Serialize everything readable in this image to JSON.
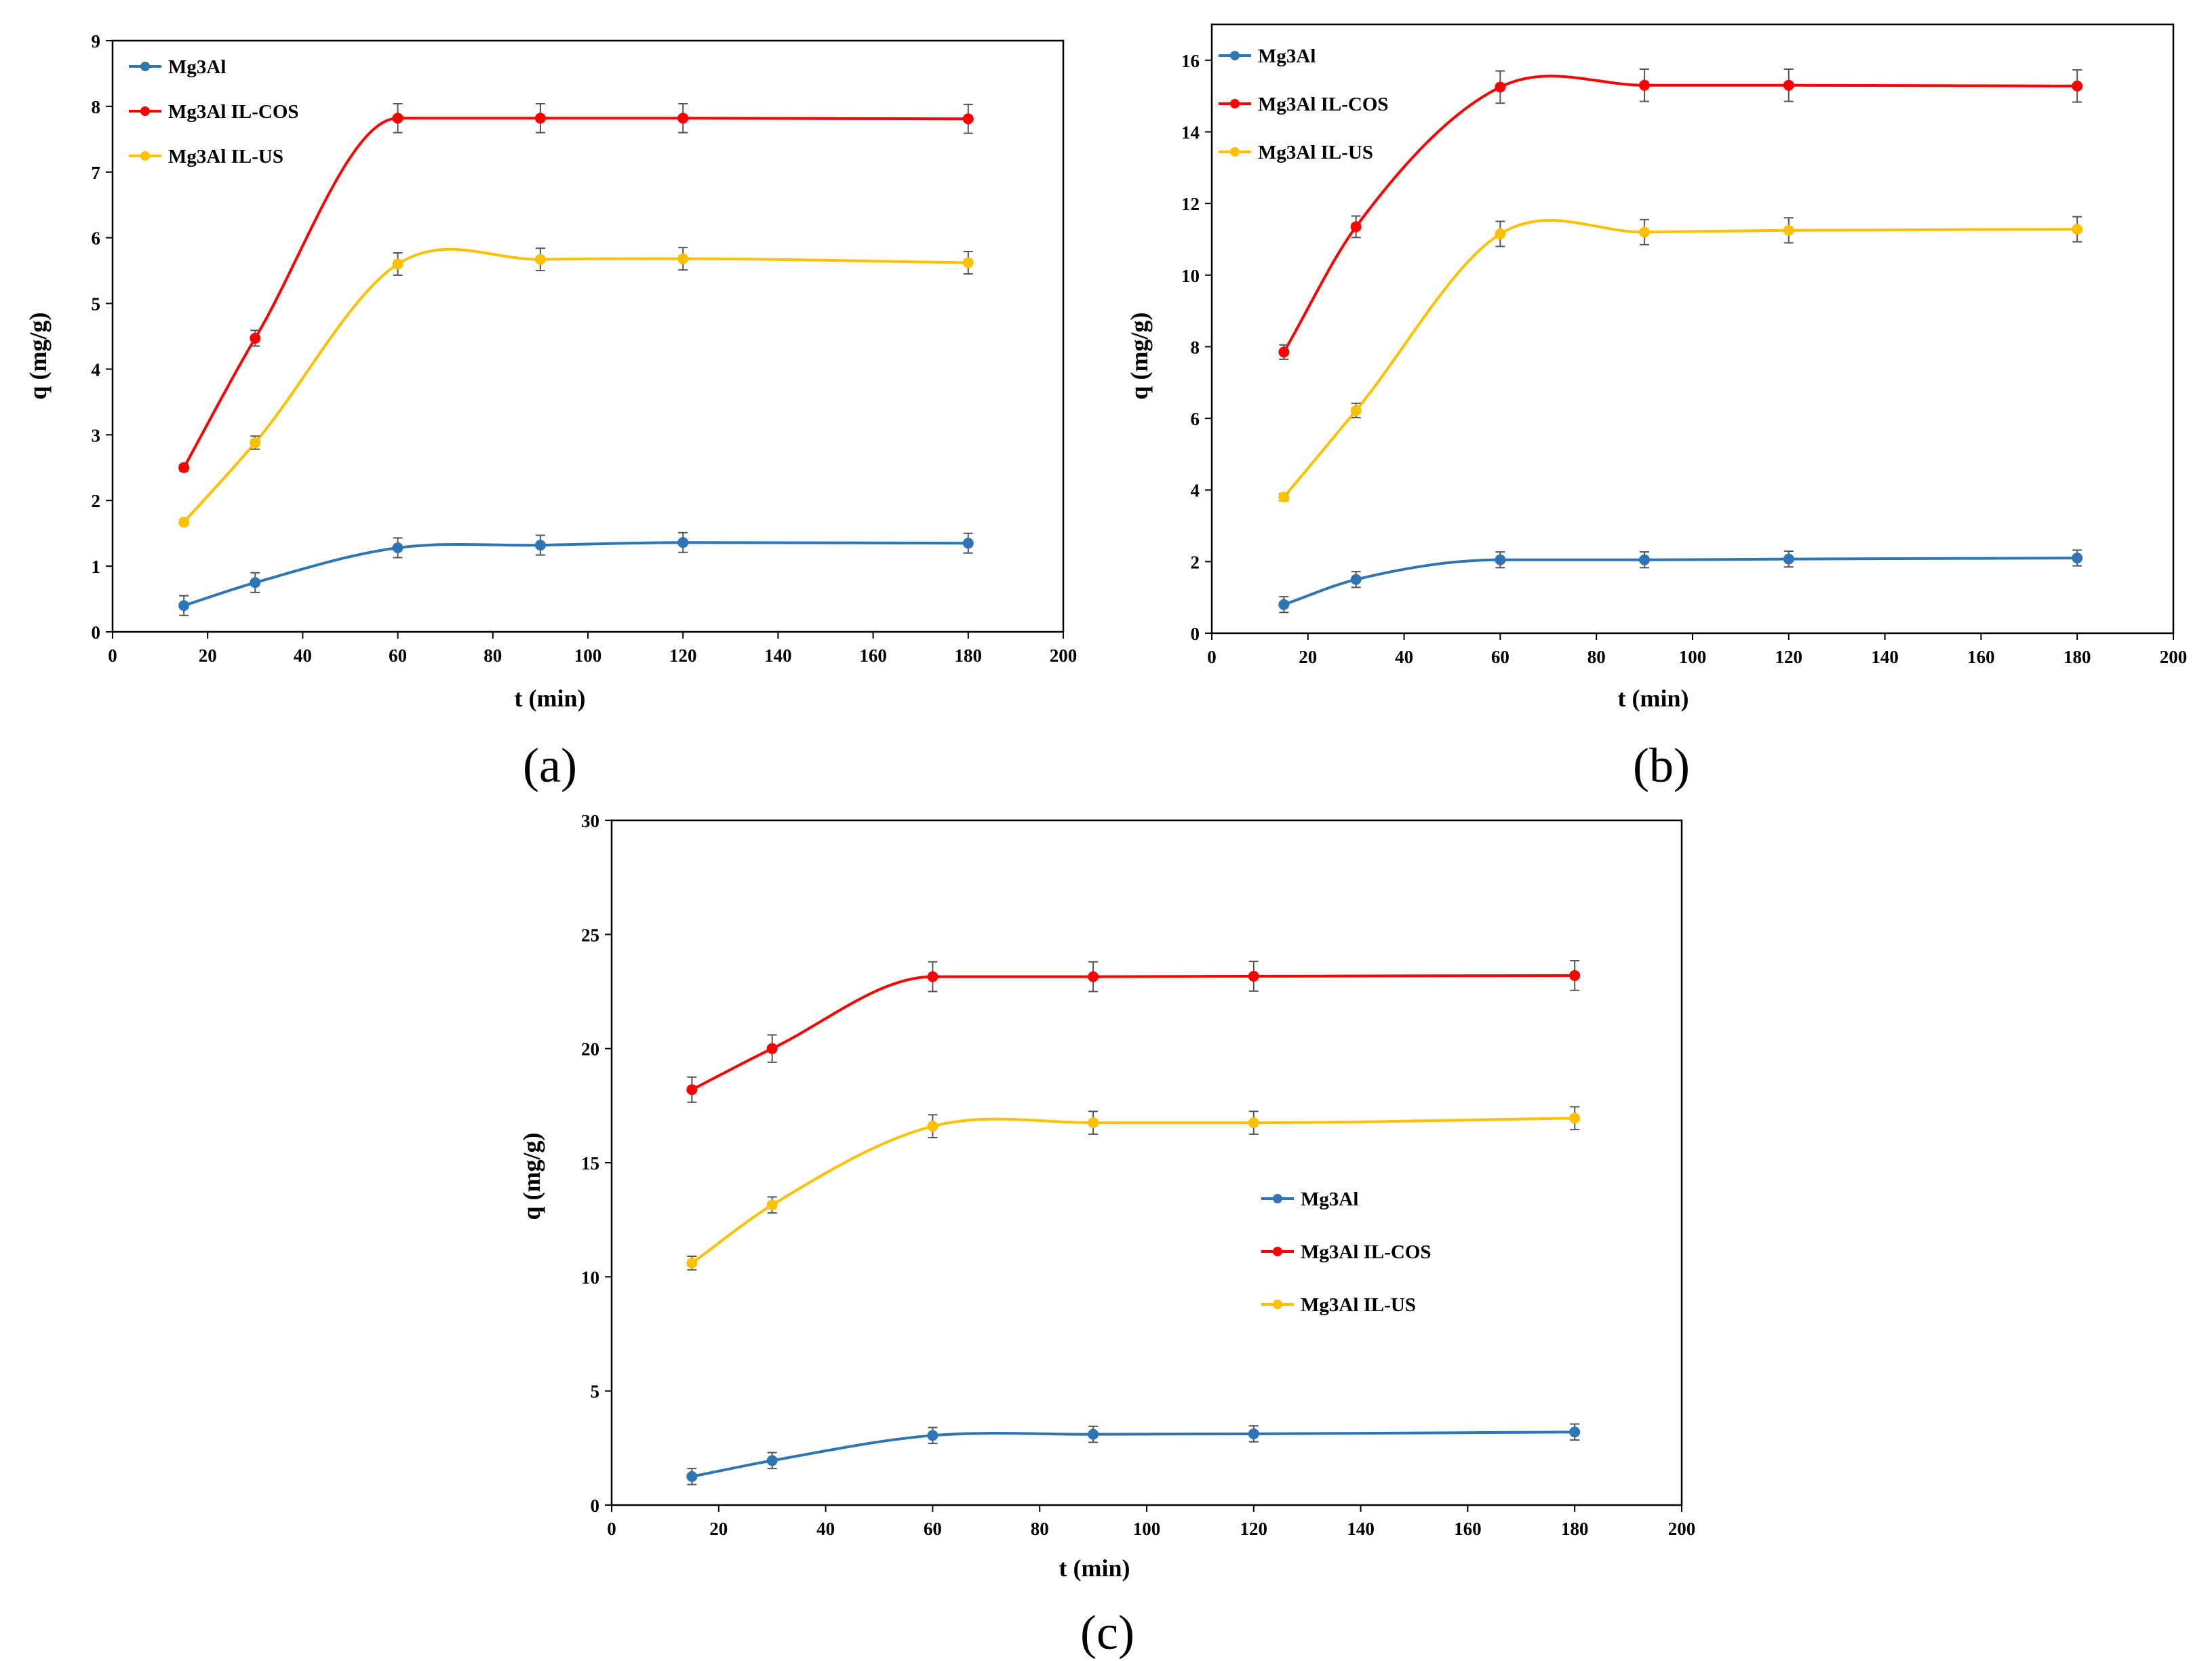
{
  "chart_data": [
    {
      "type": "line",
      "panel_label": "(a)",
      "title": "",
      "xlabel": "t (min)",
      "ylabel": "q (mg/g)",
      "xlim": [
        0,
        200
      ],
      "ylim": [
        0,
        9
      ],
      "xticks": [
        0,
        20,
        40,
        60,
        80,
        100,
        120,
        140,
        160,
        180,
        200
      ],
      "yticks": [
        0,
        1,
        2,
        3,
        4,
        5,
        6,
        7,
        8,
        9
      ],
      "grid": false,
      "legend_position": "top-left",
      "x": [
        15,
        30,
        60,
        90,
        120,
        180
      ],
      "series": [
        {
          "name": "Mg3Al",
          "color": "#2E75B6",
          "values": [
            0.4,
            0.75,
            1.28,
            1.32,
            1.36,
            1.35
          ],
          "errors": [
            0.15,
            0.15,
            0.15,
            0.15,
            0.15,
            0.15
          ]
        },
        {
          "name": "Mg3Al IL-COS",
          "color": "#FF0000",
          "values": [
            2.5,
            4.47,
            7.82,
            7.82,
            7.82,
            7.81
          ],
          "errors": [
            0.05,
            0.12,
            0.22,
            0.22,
            0.22,
            0.22
          ]
        },
        {
          "name": "Mg3Al IL-US",
          "color": "#FFC000",
          "values": [
            1.67,
            2.88,
            5.6,
            5.67,
            5.68,
            5.62
          ],
          "errors": [
            0.03,
            0.1,
            0.17,
            0.17,
            0.17,
            0.17
          ]
        }
      ]
    },
    {
      "type": "line",
      "panel_label": "(b)",
      "title": "",
      "xlabel": "t (min)",
      "ylabel": "q (mg/g)",
      "xlim": [
        0,
        200
      ],
      "ylim": [
        0,
        17
      ],
      "xticks": [
        0,
        20,
        40,
        60,
        80,
        100,
        120,
        140,
        160,
        180,
        200
      ],
      "yticks": [
        0,
        2,
        4,
        6,
        8,
        10,
        12,
        14,
        16
      ],
      "grid": false,
      "legend_position": "top-left",
      "x": [
        15,
        30,
        60,
        90,
        120,
        180
      ],
      "series": [
        {
          "name": "Mg3Al",
          "color": "#2E75B6",
          "values": [
            0.8,
            1.5,
            2.05,
            2.05,
            2.07,
            2.1
          ],
          "errors": [
            0.22,
            0.22,
            0.22,
            0.22,
            0.22,
            0.22
          ]
        },
        {
          "name": "Mg3Al IL-COS",
          "color": "#FF0000",
          "values": [
            7.85,
            11.35,
            15.25,
            15.3,
            15.3,
            15.28
          ],
          "errors": [
            0.2,
            0.3,
            0.45,
            0.45,
            0.45,
            0.45
          ]
        },
        {
          "name": "Mg3Al IL-US",
          "color": "#FFC000",
          "values": [
            3.8,
            6.22,
            11.15,
            11.2,
            11.25,
            11.28
          ],
          "errors": [
            0.1,
            0.2,
            0.35,
            0.35,
            0.35,
            0.35
          ]
        }
      ]
    },
    {
      "type": "line",
      "panel_label": "(c)",
      "title": "",
      "xlabel": "t (min)",
      "ylabel": "q (mg/g)",
      "xlim": [
        0,
        200
      ],
      "ylim": [
        0,
        30
      ],
      "xticks": [
        0,
        20,
        40,
        60,
        80,
        100,
        120,
        140,
        160,
        180,
        200
      ],
      "yticks": [
        0,
        5,
        10,
        15,
        20,
        25,
        30
      ],
      "grid": false,
      "legend_position": "center-right",
      "x": [
        15,
        30,
        60,
        90,
        120,
        180
      ],
      "series": [
        {
          "name": "Mg3Al",
          "color": "#2E75B6",
          "values": [
            1.25,
            1.95,
            3.05,
            3.1,
            3.12,
            3.2
          ],
          "errors": [
            0.35,
            0.35,
            0.35,
            0.35,
            0.35,
            0.35
          ]
        },
        {
          "name": "Mg3Al IL-COS",
          "color": "#FF0000",
          "values": [
            18.2,
            20.0,
            23.15,
            23.15,
            23.17,
            23.2
          ],
          "errors": [
            0.55,
            0.6,
            0.65,
            0.65,
            0.65,
            0.65
          ]
        },
        {
          "name": "Mg3Al IL-US",
          "color": "#FFC000",
          "values": [
            10.6,
            13.15,
            16.6,
            16.75,
            16.75,
            16.95
          ],
          "errors": [
            0.3,
            0.35,
            0.5,
            0.5,
            0.5,
            0.5
          ]
        }
      ]
    }
  ]
}
